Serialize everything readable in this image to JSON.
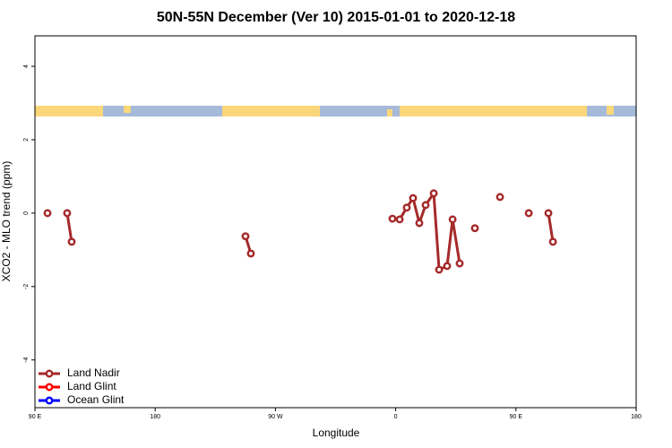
{
  "chart_data": {
    "type": "line",
    "title": "50N-55N December (Ver 10)   2015-01-01 to 2020-12-18",
    "xlabel": "Longitude",
    "ylabel": "XCO2 - MLO trend (ppm)",
    "xlim": [
      -270,
      180
    ],
    "xticks": [
      {
        "value": -270,
        "label": "90 E"
      },
      {
        "value": -180,
        "label": "180"
      },
      {
        "value": -90,
        "label": "90 W"
      },
      0,
      {
        "value": 90,
        "label": "90 E"
      },
      180
    ],
    "ylim": [
      -5.3,
      4.83
    ],
    "yticks": [
      -4,
      -2,
      0,
      2,
      4
    ],
    "legend": "bottom-left",
    "series": [
      {
        "name": "Land Nadir",
        "color": "#a52a2a",
        "x": [
          -260.6,
          null,
          -245.9,
          -242.5,
          null,
          -112.4,
          -108.4,
          null,
          -2.4,
          3.0,
          8.3,
          13.0,
          17.7,
          22.4,
          28.5,
          32.5,
          38.5,
          42.6,
          47.9,
          null,
          59.3,
          null,
          78.1,
          null,
          99.6,
          null,
          114.3,
          117.7
        ],
        "values": [
          0,
          null,
          0,
          -0.78,
          null,
          -0.63,
          -1.1,
          null,
          -0.15,
          -0.17,
          0.15,
          0.41,
          -0.27,
          0.22,
          0.54,
          -1.54,
          -1.44,
          -0.17,
          -1.37,
          null,
          -0.41,
          null,
          0.44,
          null,
          0,
          null,
          0,
          -0.78
        ]
      },
      {
        "name": "Land Glint",
        "color": "#ff0000",
        "x": [],
        "values": []
      },
      {
        "name": "Ocean Glint",
        "color": "#0000ff",
        "x": [],
        "values": []
      }
    ]
  }
}
